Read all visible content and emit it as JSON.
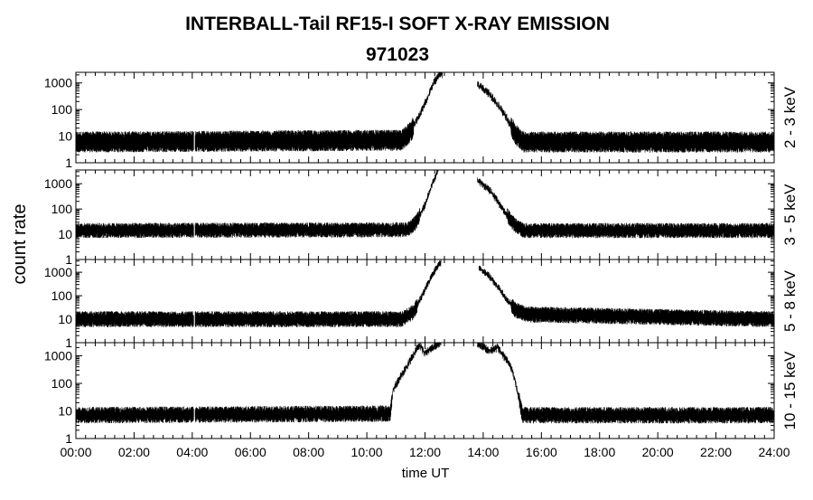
{
  "chart_data": {
    "type": "line",
    "title": "INTERBALL-Tail RF15-I SOFT X-RAY EMISSION",
    "subtitle": "971023",
    "xlabel": "time UT",
    "ylabel": "count rate",
    "x_unit": "hours UT",
    "xlim": [
      0,
      24
    ],
    "x_ticks": [
      0,
      2,
      4,
      6,
      8,
      10,
      12,
      14,
      16,
      18,
      20,
      22,
      24
    ],
    "x_tick_labels": [
      "00:00",
      "02:00",
      "04:00",
      "06:00",
      "08:00",
      "10:00",
      "12:00",
      "14:00",
      "16:00",
      "18:00",
      "20:00",
      "22:00",
      "24:00"
    ],
    "y_scale": "log",
    "y_tick_labels": [
      "1",
      "10",
      "100",
      "1000"
    ],
    "grid": false,
    "panels": [
      {
        "name": "2 - 3 keV",
        "ylim": [
          1,
          2500
        ],
        "background": 6,
        "noise": 2.5,
        "gaps": [
          [
            4.05,
            4.1
          ],
          [
            12.6,
            13.8
          ]
        ],
        "points": [
          [
            0,
            6
          ],
          [
            11.2,
            7
          ],
          [
            11.5,
            14
          ],
          [
            11.8,
            60
          ],
          [
            12.1,
            300
          ],
          [
            12.3,
            1000
          ],
          [
            12.52,
            2300
          ],
          [
            13.85,
            800
          ],
          [
            14.2,
            400
          ],
          [
            14.5,
            150
          ],
          [
            14.8,
            50
          ],
          [
            15.1,
            12
          ],
          [
            15.4,
            6
          ],
          [
            24,
            6
          ]
        ]
      },
      {
        "name": "3 - 5 keV",
        "ylim": [
          1,
          3500
        ],
        "background": 14,
        "noise": 2,
        "gaps": [
          [
            4.05,
            4.1
          ],
          [
            12.45,
            13.8
          ]
        ],
        "points": [
          [
            0,
            14
          ],
          [
            11.4,
            15
          ],
          [
            11.7,
            30
          ],
          [
            12.0,
            150
          ],
          [
            12.2,
            700
          ],
          [
            12.42,
            3000
          ],
          [
            13.85,
            1200
          ],
          [
            14.2,
            600
          ],
          [
            14.5,
            200
          ],
          [
            14.8,
            60
          ],
          [
            15.1,
            22
          ],
          [
            15.4,
            14
          ],
          [
            24,
            14
          ]
        ]
      },
      {
        "name": "5 - 8 keV",
        "ylim": [
          1,
          3500
        ],
        "background": 10,
        "noise": 2.2,
        "gaps": [
          [
            4.05,
            4.1
          ],
          [
            12.55,
            13.85
          ]
        ],
        "points": [
          [
            0,
            10
          ],
          [
            11.2,
            10
          ],
          [
            11.6,
            20
          ],
          [
            11.9,
            100
          ],
          [
            12.2,
            600
          ],
          [
            12.5,
            2500
          ],
          [
            13.9,
            1500
          ],
          [
            14.2,
            700
          ],
          [
            14.5,
            250
          ],
          [
            14.8,
            70
          ],
          [
            15.1,
            25
          ],
          [
            15.5,
            16
          ],
          [
            24,
            10
          ]
        ]
      },
      {
        "name": "10 - 15 keV",
        "ylim": [
          1,
          3000
        ],
        "background": 7,
        "noise": 2,
        "gaps": [
          [
            4.05,
            4.1
          ],
          [
            12.55,
            13.8
          ]
        ],
        "points": [
          [
            0,
            7
          ],
          [
            10.8,
            8
          ],
          [
            10.9,
            60
          ],
          [
            11.2,
            200
          ],
          [
            11.5,
            700
          ],
          [
            11.8,
            2500
          ],
          [
            12.0,
            1200
          ],
          [
            12.2,
            1800
          ],
          [
            12.5,
            2800
          ],
          [
            13.85,
            2800
          ],
          [
            14.2,
            1500
          ],
          [
            14.5,
            2000
          ],
          [
            14.8,
            700
          ],
          [
            15.0,
            300
          ],
          [
            15.2,
            40
          ],
          [
            15.35,
            7
          ],
          [
            24,
            7
          ]
        ]
      }
    ]
  }
}
